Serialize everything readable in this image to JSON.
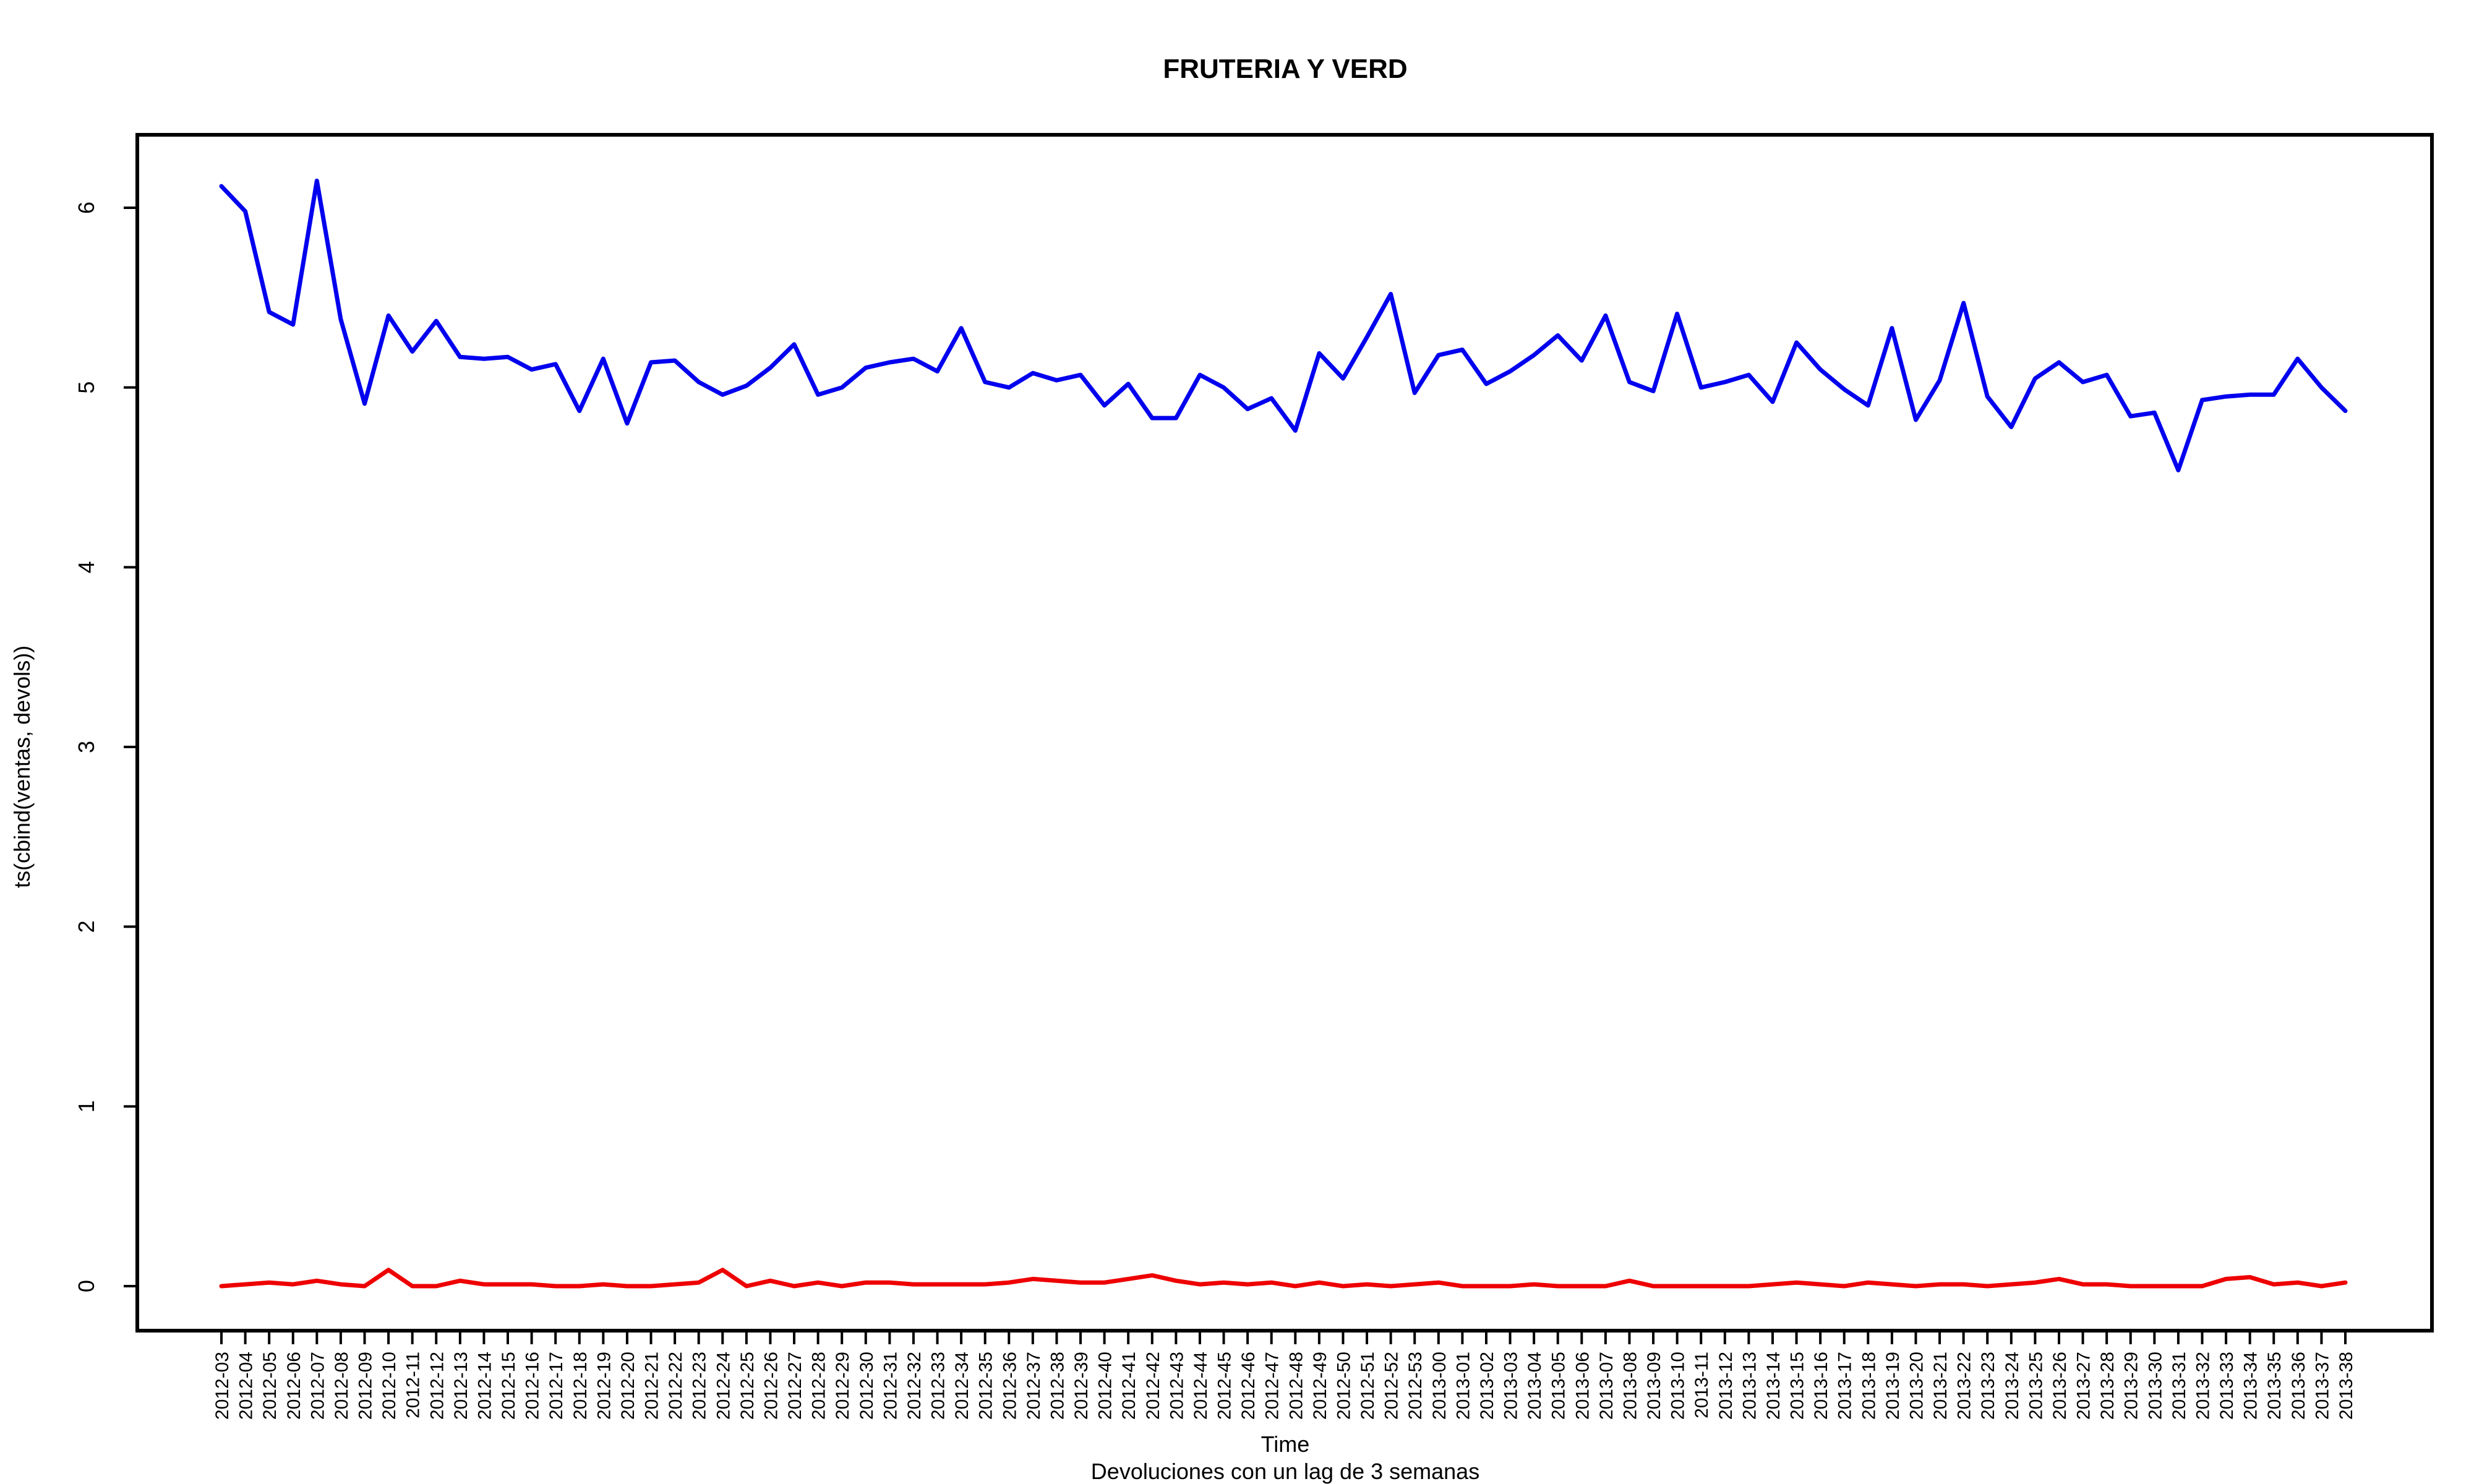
{
  "chart_data": {
    "type": "line",
    "title": "FRUTERIA Y VERD",
    "xlabel": "Time",
    "ylabel": "ts(cbind(ventas, devols))",
    "subtitle": "Devoluciones con un lag de 3 semanas",
    "ylim": [
      -0.24,
      6.4
    ],
    "yticks": [
      0,
      1,
      2,
      3,
      4,
      5,
      6
    ],
    "grid": false,
    "x": [
      "2012-03",
      "2012-04",
      "2012-05",
      "2012-06",
      "2012-07",
      "2012-08",
      "2012-09",
      "2012-10",
      "2012-11",
      "2012-12",
      "2012-13",
      "2012-14",
      "2012-15",
      "2012-16",
      "2012-17",
      "2012-18",
      "2012-19",
      "2012-20",
      "2012-21",
      "2012-22",
      "2012-23",
      "2012-24",
      "2012-25",
      "2012-26",
      "2012-27",
      "2012-28",
      "2012-29",
      "2012-30",
      "2012-31",
      "2012-32",
      "2012-33",
      "2012-34",
      "2012-35",
      "2012-36",
      "2012-37",
      "2012-38",
      "2012-39",
      "2012-40",
      "2012-41",
      "2012-42",
      "2012-43",
      "2012-44",
      "2012-45",
      "2012-46",
      "2012-47",
      "2012-48",
      "2012-49",
      "2012-50",
      "2012-51",
      "2012-52",
      "2012-53",
      "2013-00",
      "2013-01",
      "2013-02",
      "2013-03",
      "2013-04",
      "2013-05",
      "2013-06",
      "2013-07",
      "2013-08",
      "2013-09",
      "2013-10",
      "2013-11",
      "2013-12",
      "2013-13",
      "2013-14",
      "2013-15",
      "2013-16",
      "2013-17",
      "2013-18",
      "2013-19",
      "2013-20",
      "2013-21",
      "2013-22",
      "2013-23",
      "2013-24",
      "2013-25",
      "2013-26",
      "2013-27",
      "2013-28",
      "2013-29",
      "2013-30",
      "2013-31",
      "2013-32",
      "2013-33",
      "2013-34",
      "2013-35",
      "2013-36",
      "2013-37",
      "2013-38"
    ],
    "series": [
      {
        "color": "#0000ee",
        "values": [
          6.12,
          5.98,
          5.42,
          5.35,
          6.15,
          5.38,
          4.91,
          5.4,
          5.2,
          5.37,
          5.17,
          5.16,
          5.17,
          5.1,
          5.13,
          4.87,
          5.16,
          4.8,
          5.14,
          5.15,
          5.03,
          4.96,
          5.01,
          5.11,
          5.24,
          4.96,
          5.0,
          5.11,
          5.14,
          5.16,
          5.09,
          5.33,
          5.03,
          5.0,
          5.08,
          5.04,
          5.07,
          4.9,
          5.02,
          4.83,
          4.83,
          5.07,
          5.0,
          4.88,
          4.94,
          4.76,
          5.19,
          5.05,
          5.28,
          5.52,
          4.97,
          5.18,
          5.21,
          5.02,
          5.09,
          5.18,
          5.29,
          5.15,
          5.4,
          5.03,
          4.98,
          5.41,
          5.0,
          5.03,
          5.07,
          4.92,
          5.25,
          5.1,
          4.99,
          4.9,
          5.33,
          4.82,
          5.04,
          5.47,
          4.95,
          4.78,
          5.05,
          5.14,
          5.03,
          5.07,
          4.84,
          4.86,
          4.54,
          4.93,
          4.95,
          4.96,
          4.96,
          5.16,
          5.0,
          4.87
        ]
      },
      {
        "color": "#ee0000",
        "values": [
          0.0,
          0.01,
          0.02,
          0.01,
          0.03,
          0.01,
          0.0,
          0.09,
          0.0,
          0.0,
          0.03,
          0.01,
          0.01,
          0.01,
          0.0,
          0.0,
          0.01,
          0.0,
          0.0,
          0.01,
          0.02,
          0.09,
          0.0,
          0.03,
          0.0,
          0.02,
          0.0,
          0.02,
          0.02,
          0.01,
          0.01,
          0.01,
          0.01,
          0.02,
          0.04,
          0.03,
          0.02,
          0.02,
          0.04,
          0.06,
          0.03,
          0.01,
          0.02,
          0.01,
          0.02,
          0.0,
          0.02,
          0.0,
          0.01,
          0.0,
          0.01,
          0.02,
          0.0,
          0.0,
          0.0,
          0.01,
          0.0,
          0.0,
          0.0,
          0.03,
          0.0,
          0.0,
          0.0,
          0.0,
          0.0,
          0.01,
          0.02,
          0.01,
          0.0,
          0.02,
          0.01,
          0.0,
          0.01,
          0.01,
          0.0,
          0.01,
          0.02,
          0.04,
          0.01,
          0.01,
          0.0,
          0.0,
          0.0,
          0.0,
          0.04,
          0.05,
          0.01,
          0.02,
          0.0,
          0.02
        ]
      }
    ]
  }
}
